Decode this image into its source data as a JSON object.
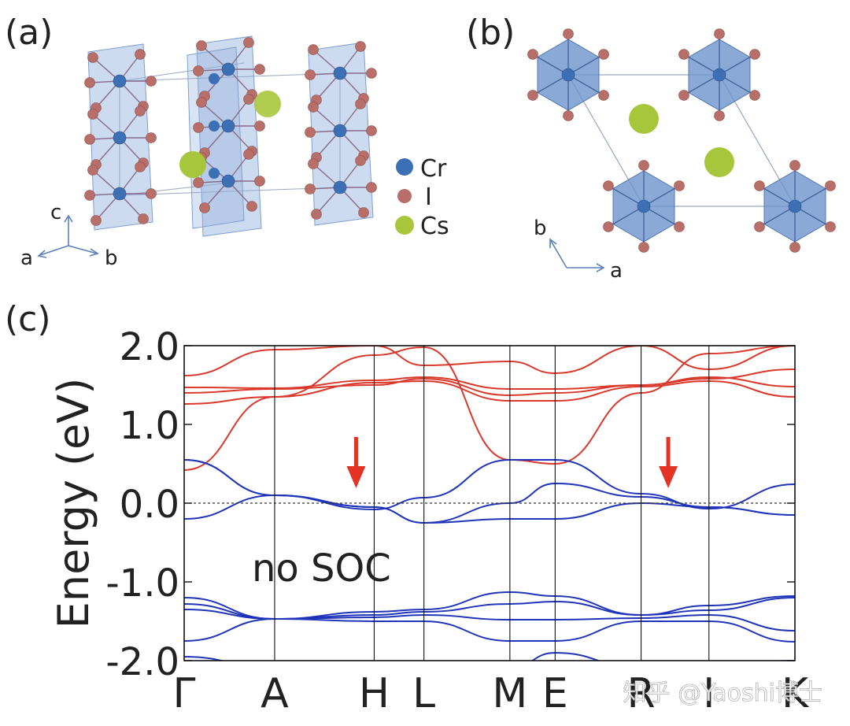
{
  "panels": {
    "a": {
      "label": "(a)"
    },
    "b": {
      "label": "(b)"
    },
    "c": {
      "label": "(c)"
    }
  },
  "legend": {
    "items": [
      {
        "name": "Cr",
        "color": "#3d6fb5"
      },
      {
        "name": "I",
        "color": "#b86f6a"
      },
      {
        "name": "Cs",
        "color": "#a8c63b"
      }
    ]
  },
  "axes_a": {
    "c": "c",
    "a": "a",
    "b": "b"
  },
  "axes_b": {
    "b": "b",
    "a": "a"
  },
  "colors": {
    "polyhedron": "#8fb0dc",
    "cr": "#3d6fb5",
    "iodine": "#b86f6a",
    "cs": "#a8c63b",
    "band_up": "#d9382b",
    "band_down": "#1f34b8",
    "arrow": "#e33325"
  },
  "chart_data": {
    "type": "line",
    "title": "",
    "ylabel": "Energy (eV)",
    "xlabel": "",
    "ylim": [
      -2.0,
      2.0
    ],
    "yticks": [
      2.0,
      1.0,
      0.0,
      -1.0,
      -2.0
    ],
    "ytick_labels": [
      "2.0",
      "1.0",
      "0.0",
      "-1.0",
      "-2.0"
    ],
    "kpoints": [
      {
        "label": "Γ",
        "x": 0.0
      },
      {
        "label": "A",
        "x": 1.0
      },
      {
        "label": "H",
        "x": 2.1
      },
      {
        "label": "L",
        "x": 2.65
      },
      {
        "label": "M",
        "x": 3.6
      },
      {
        "label": "E",
        "x": 4.1
      },
      {
        "label": "R",
        "x": 5.05
      },
      {
        "label": "I",
        "x": 5.8
      },
      {
        "label": "K",
        "x": 6.75
      }
    ],
    "annotation": "no SOC",
    "fermi_level": 0.0,
    "arrows_at_x": [
      1.9,
      5.35
    ],
    "series": [
      {
        "group": "majority",
        "values_at_kpoints": [
          1.26,
          1.35,
          1.53,
          1.55,
          1.3,
          1.3,
          1.48,
          1.55,
          1.35
        ]
      },
      {
        "group": "majority",
        "values_at_kpoints": [
          1.4,
          1.45,
          1.5,
          1.58,
          1.37,
          1.4,
          1.5,
          1.58,
          1.7
        ]
      },
      {
        "group": "majority",
        "values_at_kpoints": [
          1.47,
          1.46,
          1.56,
          1.6,
          1.45,
          1.45,
          1.5,
          1.6,
          1.48
        ]
      },
      {
        "group": "majority",
        "values_at_kpoints": [
          0.42,
          1.35,
          1.88,
          1.98,
          0.55,
          0.5,
          1.4,
          1.9,
          2.0
        ]
      },
      {
        "group": "majority",
        "values_at_kpoints": [
          1.62,
          1.95,
          2.0,
          1.75,
          1.8,
          1.65,
          2.0,
          1.7,
          2.0
        ]
      },
      {
        "group": "minority",
        "values_at_kpoints": [
          0.55,
          0.1,
          -0.08,
          0.07,
          0.55,
          0.55,
          0.12,
          -0.07,
          0.24
        ]
      },
      {
        "group": "minority",
        "values_at_kpoints": [
          -0.2,
          0.1,
          -0.05,
          -0.25,
          0.0,
          0.25,
          0.08,
          -0.05,
          -0.15
        ]
      },
      {
        "group": "minority",
        "values_at_kpoints": [
          0.55,
          0.1,
          -0.05,
          -0.25,
          -0.2,
          -0.2,
          0.0,
          -0.05,
          -0.15
        ]
      },
      {
        "group": "minority",
        "values_at_kpoints": [
          -1.2,
          -1.47,
          -1.38,
          -1.35,
          -1.13,
          -1.18,
          -1.42,
          -1.3,
          -1.18
        ]
      },
      {
        "group": "minority",
        "values_at_kpoints": [
          -1.28,
          -1.47,
          -1.42,
          -1.38,
          -1.28,
          -1.25,
          -1.42,
          -1.36,
          -1.2
        ]
      },
      {
        "group": "minority",
        "values_at_kpoints": [
          -1.35,
          -1.47,
          -1.45,
          -1.42,
          -1.48,
          -1.48,
          -1.46,
          -1.42,
          -1.62
        ]
      },
      {
        "group": "minority",
        "values_at_kpoints": [
          -1.75,
          -1.47,
          -1.5,
          -1.5,
          -1.75,
          -1.75,
          -1.5,
          -1.5,
          -1.76
        ]
      },
      {
        "group": "minority",
        "values_at_kpoints": [
          -1.95,
          -2.1,
          -2.1,
          -2.1,
          -2.1,
          -1.9,
          -2.1,
          -2.05,
          -2.0
        ]
      }
    ]
  },
  "watermark": "知乎 @Yaoshi博士"
}
